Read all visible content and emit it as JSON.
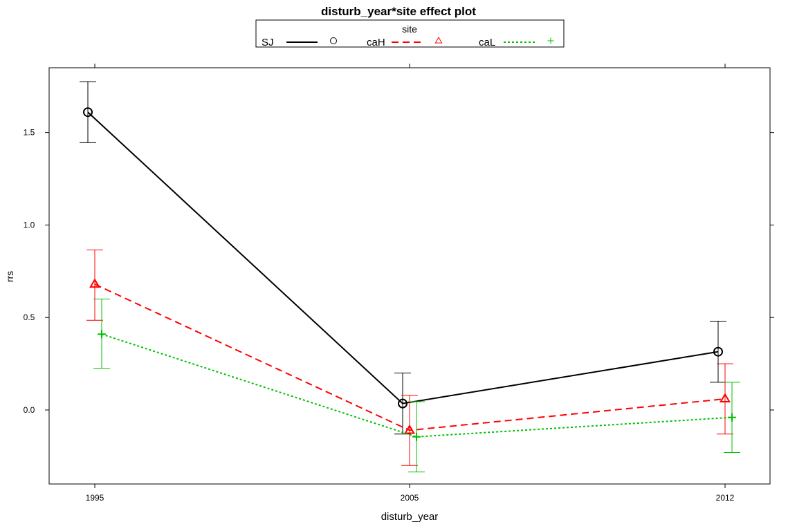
{
  "chart_data": {
    "type": "line",
    "title": "disturb_year*site effect plot",
    "xlabel": "disturb_year",
    "ylabel": "rrs",
    "x_categories": [
      "1995",
      "2005",
      "2012"
    ],
    "ylim": [
      -0.4,
      1.85
    ],
    "y_ticks": [
      0.0,
      0.5,
      1.0,
      1.5
    ],
    "y_tick_labels": [
      "0.0",
      "0.5",
      "1.0",
      "1.5"
    ],
    "legend": {
      "title": "site",
      "placement": "top"
    },
    "grid": false,
    "series": [
      {
        "name": "SJ",
        "color": "#000000",
        "marker": "circle",
        "line_style": "solid",
        "values": [
          1.61,
          0.035,
          0.315
        ],
        "lower": [
          1.445,
          -0.13,
          0.15
        ],
        "upper": [
          1.775,
          0.2,
          0.48
        ]
      },
      {
        "name": "caH",
        "color": "#ff0000",
        "marker": "triangle",
        "line_style": "dashed",
        "values": [
          0.68,
          -0.11,
          0.06
        ],
        "lower": [
          0.485,
          -0.3,
          -0.13
        ],
        "upper": [
          0.865,
          0.08,
          0.25
        ]
      },
      {
        "name": "caL",
        "color": "#00c000",
        "marker": "plus",
        "line_style": "dotted",
        "values": [
          0.41,
          -0.145,
          -0.04
        ],
        "lower": [
          0.225,
          -0.335,
          -0.23
        ],
        "upper": [
          0.6,
          0.045,
          0.15
        ]
      }
    ]
  }
}
